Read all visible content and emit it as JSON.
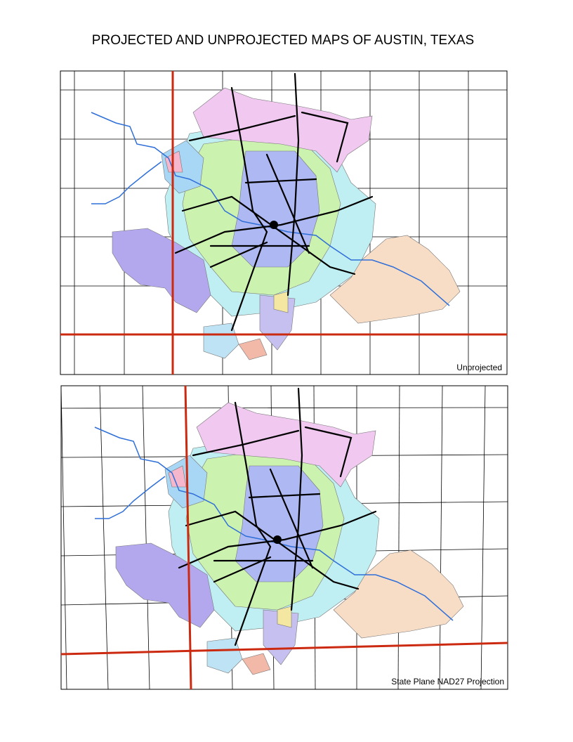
{
  "header": {
    "title": "PROJECTED AND UNPROJECTED MAPS OF AUSTIN, TEXAS"
  },
  "maps": [
    {
      "label": "Unprojected"
    },
    {
      "label": "State Plane NAD27 Projection"
    }
  ]
}
